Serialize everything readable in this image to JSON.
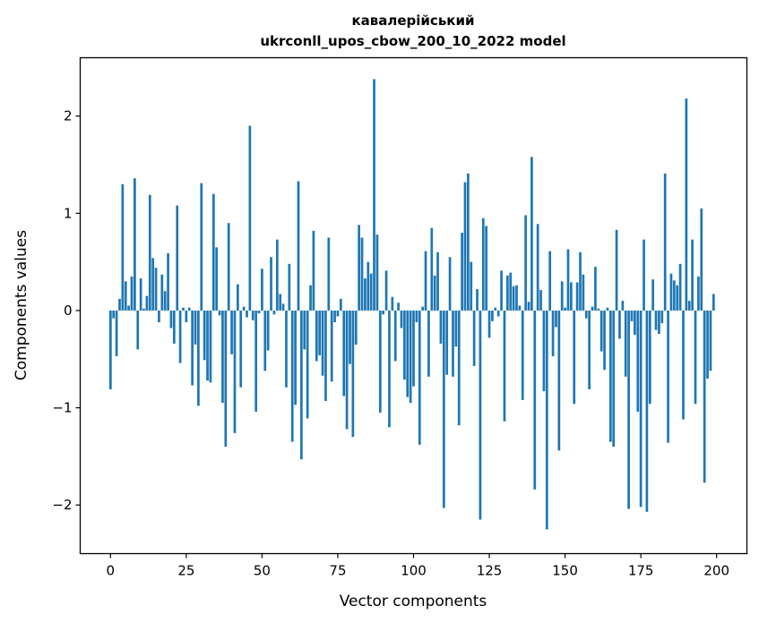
{
  "chart_data": {
    "type": "bar",
    "title": "кавалерійський",
    "subtitle": "ukrconll_upos_cbow_200_10_2022 model",
    "xlabel": "Vector components",
    "ylabel": "Components values",
    "xlim": [
      -10,
      210
    ],
    "ylim": [
      -2.5,
      2.6
    ],
    "xticks": [
      0,
      25,
      50,
      75,
      100,
      125,
      150,
      175,
      200
    ],
    "yticks": [
      -2,
      -1,
      0,
      1,
      2
    ],
    "xtick_labels": [
      "0",
      "25",
      "50",
      "75",
      "100",
      "125",
      "150",
      "175",
      "200"
    ],
    "ytick_labels": [
      "−2",
      "−1",
      "0",
      "1",
      "2"
    ],
    "grid": false,
    "bar_color": "#1f77b4",
    "x": [
      0,
      1,
      2,
      3,
      4,
      5,
      6,
      7,
      8,
      9,
      10,
      11,
      12,
      13,
      14,
      15,
      16,
      17,
      18,
      19,
      20,
      21,
      22,
      23,
      24,
      25,
      26,
      27,
      28,
      29,
      30,
      31,
      32,
      33,
      34,
      35,
      36,
      37,
      38,
      39,
      40,
      41,
      42,
      43,
      44,
      45,
      46,
      47,
      48,
      49,
      50,
      51,
      52,
      53,
      54,
      55,
      56,
      57,
      58,
      59,
      60,
      61,
      62,
      63,
      64,
      65,
      66,
      67,
      68,
      69,
      70,
      71,
      72,
      73,
      74,
      75,
      76,
      77,
      78,
      79,
      80,
      81,
      82,
      83,
      84,
      85,
      86,
      87,
      88,
      89,
      90,
      91,
      92,
      93,
      94,
      95,
      96,
      97,
      98,
      99,
      100,
      101,
      102,
      103,
      104,
      105,
      106,
      107,
      108,
      109,
      110,
      111,
      112,
      113,
      114,
      115,
      116,
      117,
      118,
      119,
      120,
      121,
      122,
      123,
      124,
      125,
      126,
      127,
      128,
      129,
      130,
      131,
      132,
      133,
      134,
      135,
      136,
      137,
      138,
      139,
      140,
      141,
      142,
      143,
      144,
      145,
      146,
      147,
      148,
      149,
      150,
      151,
      152,
      153,
      154,
      155,
      156,
      157,
      158,
      159,
      160,
      161,
      162,
      163,
      164,
      165,
      166,
      167,
      168,
      169,
      170,
      171,
      172,
      173,
      174,
      175,
      176,
      177,
      178,
      179,
      180,
      181,
      182,
      183,
      184,
      185,
      186,
      187,
      188,
      189,
      190,
      191,
      192,
      193,
      194,
      195,
      196,
      197,
      198,
      199
    ],
    "values": [
      -0.81,
      -0.08,
      -0.47,
      0.12,
      1.3,
      0.3,
      0.05,
      0.35,
      1.36,
      -0.4,
      0.33,
      0.02,
      0.15,
      1.19,
      0.54,
      0.44,
      -0.12,
      0.37,
      0.2,
      0.59,
      -0.18,
      -0.34,
      1.08,
      -0.54,
      0.03,
      -0.12,
      0.03,
      -0.77,
      -0.35,
      -0.98,
      1.31,
      -0.51,
      -0.72,
      -0.74,
      1.2,
      0.65,
      -0.05,
      -0.95,
      -1.4,
      0.9,
      -0.45,
      -1.26,
      0.27,
      -0.79,
      0.04,
      -0.07,
      1.9,
      -0.1,
      -1.04,
      -0.03,
      0.43,
      -0.62,
      -0.41,
      0.55,
      -0.04,
      0.73,
      0.17,
      0.07,
      -0.79,
      0.48,
      -1.35,
      -0.97,
      1.33,
      -1.53,
      -0.4,
      -1.11,
      0.26,
      0.82,
      -0.52,
      -0.46,
      -0.67,
      -0.93,
      0.75,
      -0.73,
      -0.12,
      -0.06,
      0.12,
      -0.88,
      -1.22,
      -0.55,
      -1.3,
      -0.35,
      0.88,
      0.75,
      0.33,
      0.5,
      0.38,
      2.38,
      0.78,
      -1.05,
      -0.04,
      0.41,
      -1.2,
      0.14,
      -0.52,
      0.08,
      -0.18,
      -0.71,
      -0.89,
      -0.95,
      -0.78,
      -0.12,
      -1.38,
      0.04,
      0.61,
      -0.68,
      0.85,
      0.36,
      0.6,
      -0.34,
      -2.03,
      -0.66,
      0.55,
      -0.68,
      -0.37,
      -1.18,
      0.8,
      1.32,
      1.41,
      0.5,
      -0.57,
      0.22,
      -2.15,
      0.95,
      0.87,
      -0.28,
      -0.11,
      0.03,
      -0.06,
      0.41,
      -1.14,
      0.36,
      0.39,
      0.25,
      0.26,
      0.05,
      -0.92,
      0.98,
      0.09,
      1.58,
      -1.84,
      0.89,
      0.21,
      -0.83,
      -2.25,
      0.61,
      -0.47,
      -0.17,
      -1.44,
      0.3,
      0.03,
      0.63,
      0.29,
      -0.96,
      0.29,
      0.6,
      0.37,
      -0.08,
      -0.81,
      0.04,
      0.45,
      0.02,
      -0.42,
      -0.61,
      0.03,
      -1.35,
      -1.4,
      0.83,
      -0.29,
      0.1,
      -0.68,
      -2.04,
      -0.11,
      -0.25,
      -1.04,
      -2.02,
      0.73,
      -2.07,
      -0.96,
      0.32,
      -0.2,
      -0.24,
      -0.13,
      1.41,
      -1.36,
      0.38,
      0.31,
      0.26,
      0.48,
      -1.12,
      2.18,
      0.1,
      0.73,
      -0.96,
      0.35,
      1.05,
      -1.77,
      -0.7,
      -0.62,
      0.17
    ]
  }
}
